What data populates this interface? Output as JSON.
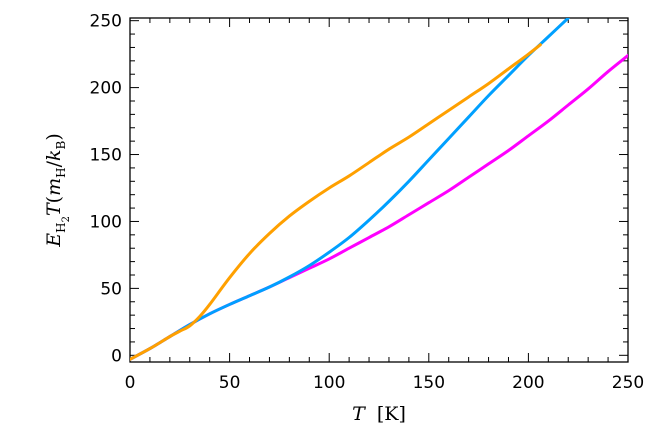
{
  "chart_data": {
    "type": "line",
    "title": "",
    "xlabel": {
      "var": "T",
      "unit": "[K]"
    },
    "ylabel": {
      "E": "E",
      "E_sub": "H",
      "E_subsub": "2",
      "T": "T",
      "open": "(",
      "m": "m",
      "m_sub": "H",
      "slash": "/",
      "k": "k",
      "k_sub": "B",
      "close": ")"
    },
    "xlim": [
      0,
      250
    ],
    "ylim": [
      -5,
      252
    ],
    "xticks": [
      0,
      50,
      100,
      150,
      200,
      250
    ],
    "yticks": [
      0,
      50,
      100,
      150,
      200,
      250
    ],
    "tick_labels_x": [
      "0",
      "50",
      "100",
      "150",
      "200",
      "250"
    ],
    "tick_labels_y": [
      "0",
      "50",
      "100",
      "150",
      "200",
      "250"
    ],
    "grid": false,
    "legend": "none",
    "series": [
      {
        "color": "#ff00ff",
        "x": [
          0,
          10,
          20,
          30,
          40,
          50,
          60,
          70,
          80,
          90,
          100,
          110,
          120,
          130,
          140,
          150,
          160,
          170,
          180,
          190,
          200,
          210,
          220,
          230,
          240,
          250
        ],
        "y": [
          -3,
          5,
          14,
          23,
          31,
          38,
          44.5,
          51,
          58,
          65,
          72,
          80,
          88,
          96,
          105,
          114,
          123,
          133,
          143,
          153,
          164,
          175,
          187,
          199,
          212,
          224
        ]
      },
      {
        "color": "#00a0ff",
        "x": [
          0,
          10,
          20,
          30,
          40,
          50,
          60,
          70,
          80,
          90,
          100,
          110,
          120,
          130,
          140,
          150,
          160,
          170,
          180,
          190,
          200,
          210,
          220
        ],
        "y": [
          -3,
          5,
          14,
          23,
          31,
          38,
          44.5,
          51,
          58.5,
          67,
          77,
          88,
          101,
          115,
          130,
          146,
          162,
          178,
          194,
          209,
          224,
          238,
          252
        ]
      },
      {
        "color": "#ffa000",
        "x": [
          0,
          10,
          20,
          25,
          30,
          35,
          40,
          50,
          60,
          70,
          80,
          90,
          100,
          110,
          120,
          130,
          140,
          150,
          160,
          170,
          180,
          190,
          200,
          206
        ],
        "y": [
          -3,
          5,
          14,
          18,
          22,
          29,
          38,
          58,
          76,
          91,
          104,
          115,
          125,
          134,
          144,
          154,
          163,
          173,
          183,
          193,
          203,
          214,
          225,
          232
        ]
      }
    ]
  }
}
